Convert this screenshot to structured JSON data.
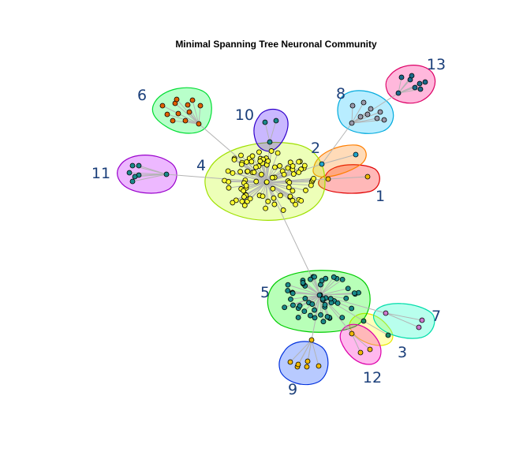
{
  "title": "Minimal Spanning Tree Neuronal Community",
  "communities": [
    {
      "label": "1",
      "fill": "#ff0000",
      "stroke": "#e00000",
      "node_color": "#f0b800"
    },
    {
      "label": "2",
      "fill": "#ff7f00",
      "stroke": "#ff7f00",
      "node_color": "#1fa4c9"
    },
    {
      "label": "3",
      "fill": "#ffff00",
      "stroke": "#e8e800",
      "node_color": "#1a8a6a"
    },
    {
      "label": "4",
      "fill": "#bfff00",
      "stroke": "#9fe000",
      "node_color": "#ffff33"
    },
    {
      "label": "5",
      "fill": "#00ff00",
      "stroke": "#00cc00",
      "node_color": "#1a8a8a"
    },
    {
      "label": "6",
      "fill": "#00ff40",
      "stroke": "#00dd33",
      "node_color": "#e06000"
    },
    {
      "label": "7",
      "fill": "#00ffbf",
      "stroke": "#00ddaa",
      "node_color": "#cc77cc"
    },
    {
      "label": "8",
      "fill": "#00bfff",
      "stroke": "#00aadd",
      "node_color": "#9999aa"
    },
    {
      "label": "9",
      "fill": "#0040ff",
      "stroke": "#0030dd",
      "node_color": "#f0b800"
    },
    {
      "label": "10",
      "fill": "#4000ff",
      "stroke": "#3000cc",
      "node_color": "#1a8a8a"
    },
    {
      "label": "11",
      "fill": "#bf00ff",
      "stroke": "#9900cc",
      "node_color": "#1a8a8a"
    },
    {
      "label": "12",
      "fill": "#ff00bf",
      "stroke": "#dd00aa",
      "node_color": "#f0b800"
    },
    {
      "label": "13",
      "fill": "#ff0080",
      "stroke": "#dd0066",
      "node_color": "#1a6a8a"
    }
  ]
}
